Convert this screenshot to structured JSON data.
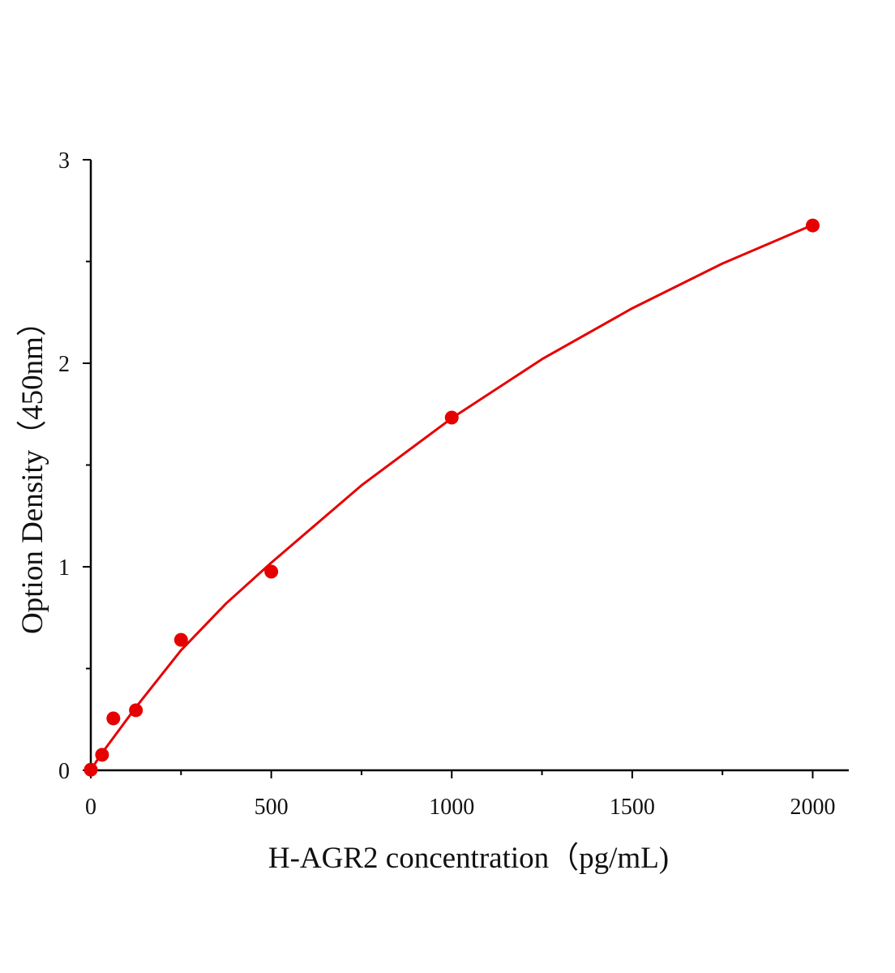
{
  "chart_data": {
    "type": "scatter",
    "x_label": "H-AGR2 concentration（pg/mL)",
    "y_label": "Option Density（450nm）",
    "series": [
      {
        "color": "#e60000",
        "x": [
          0,
          31.25,
          62.5,
          125,
          250,
          500,
          1000,
          2000
        ],
        "values": [
          0.003,
          0.076,
          0.255,
          0.295,
          0.641,
          0.976,
          1.733,
          2.677
        ]
      },
      {
        "color": "#e60000",
        "x": [
          0,
          25,
          50,
          125,
          250,
          375,
          500,
          750,
          1000,
          1250,
          1500,
          1750,
          2000
        ],
        "values": [
          0,
          0.07,
          0.13,
          0.31,
          0.59,
          0.82,
          1.02,
          1.4,
          1.73,
          2.02,
          2.27,
          2.49,
          2.68
        ]
      }
    ],
    "xlim": [
      0,
      2100
    ],
    "xticks": [
      0,
      500,
      1000,
      1500,
      2000
    ],
    "xminorticks": [
      250,
      750,
      1250,
      1750
    ],
    "ylim": [
      0,
      3
    ],
    "yticks": [
      0,
      1,
      2,
      3
    ],
    "yminorticks": [
      0.5,
      1.5,
      2.5
    ]
  }
}
